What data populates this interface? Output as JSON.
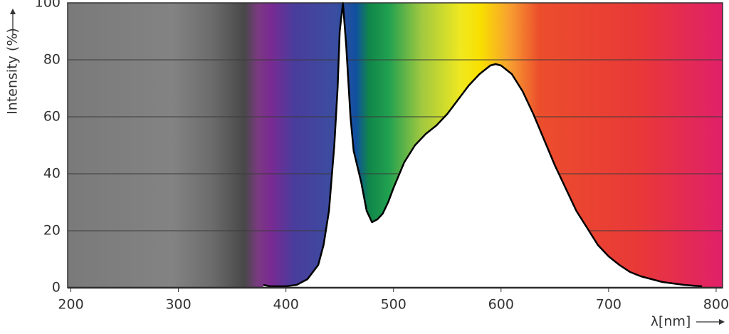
{
  "chart_data": {
    "type": "area",
    "x_label": "λ[nm]",
    "y_label": "Intensity (%)",
    "x": [
      379,
      385,
      400,
      410,
      420,
      430,
      435,
      440,
      445,
      448,
      450,
      453,
      456,
      460,
      463,
      470,
      475,
      480,
      485,
      490,
      495,
      500,
      510,
      520,
      530,
      540,
      550,
      560,
      570,
      580,
      590,
      595,
      600,
      610,
      620,
      630,
      640,
      650,
      660,
      670,
      680,
      690,
      700,
      710,
      720,
      730,
      740,
      750,
      760,
      770,
      780,
      787
    ],
    "values": [
      1,
      0.5,
      0.5,
      1,
      3,
      8,
      15,
      27,
      50,
      70,
      90,
      100,
      85,
      60,
      48,
      37,
      27,
      23,
      24,
      26,
      30,
      35,
      44,
      50,
      54,
      57,
      61,
      66,
      71,
      75,
      78,
      78.5,
      78,
      75,
      69,
      61,
      52,
      43,
      35,
      27,
      21,
      15,
      11,
      8,
      5.5,
      4,
      3,
      2,
      1.5,
      1,
      0.7,
      0.5
    ],
    "color": "#000000",
    "xlim": [
      197,
      806
    ],
    "ylim": [
      0,
      100
    ],
    "xticks": [
      200,
      300,
      400,
      500,
      600,
      700,
      800
    ],
    "yticks": [
      0,
      20,
      40,
      60,
      80,
      100
    ],
    "grid": true
  }
}
